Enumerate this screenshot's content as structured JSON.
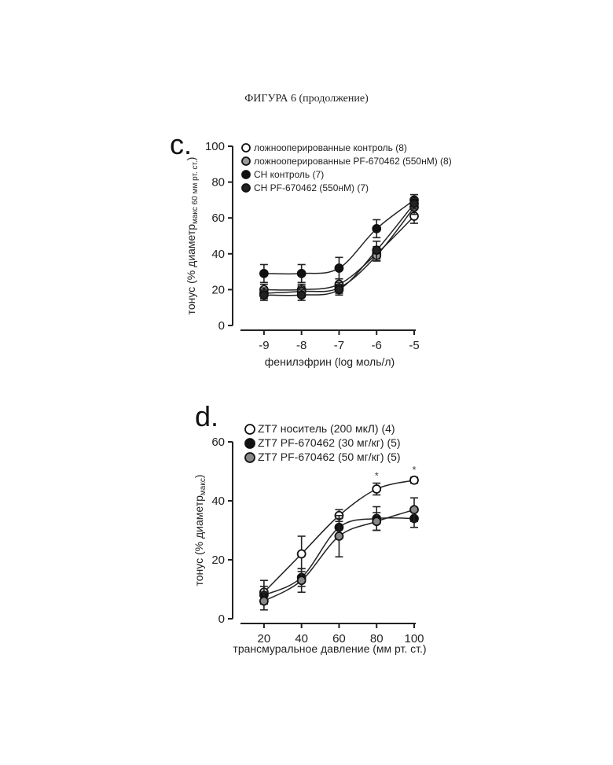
{
  "caption": "ФИГУРА 6 (продолжение)",
  "chart_data": [
    {
      "panel": "c.",
      "type": "line",
      "xlabel": "фенилэфрин (log моль/л)",
      "ylabel_main": "тонус (% диаметр",
      "ylabel_sub": "макс 60 мм рт. ст.",
      "ylabel_end": ")",
      "xlim": [
        -9.5,
        -5
      ],
      "ylim": [
        0,
        100
      ],
      "xticks": [
        "-9",
        "-8",
        "-7",
        "-6",
        "-5"
      ],
      "yticks": [
        "0",
        "20",
        "40",
        "60",
        "80",
        "100"
      ],
      "x": [
        -9,
        -8,
        -7,
        -6,
        -5
      ],
      "legend_position": "top-left",
      "series": [
        {
          "name": "ложнооперированные контроль (8)",
          "color": "#ffffff",
          "values": [
            20,
            20,
            23,
            40,
            61
          ],
          "errors": [
            3,
            3,
            3,
            4,
            4
          ]
        },
        {
          "name": "ложнооперированные PF-670462 (550нМ) (8)",
          "color": "#999999",
          "values": [
            18,
            19,
            21,
            39,
            66
          ],
          "errors": [
            3,
            3,
            3,
            3,
            4
          ]
        },
        {
          "name": "CH контроль (7)",
          "color": "#111111",
          "values": [
            29,
            29,
            32,
            54,
            70
          ],
          "errors": [
            5,
            5,
            6,
            5,
            3
          ]
        },
        {
          "name": "CH PF-670462 (550нМ) (7)",
          "color": "#222222",
          "values": [
            17,
            17,
            20,
            42,
            68
          ],
          "errors": [
            3,
            3,
            3,
            5,
            3
          ]
        }
      ]
    },
    {
      "panel": "d.",
      "type": "line",
      "xlabel": "трансмуральное давление (мм рт. ст.)",
      "ylabel_main": "тонус (% диаметр",
      "ylabel_sub": "макс",
      "ylabel_end": ")",
      "xlim": [
        10,
        100
      ],
      "ylim": [
        0,
        60
      ],
      "xticks": [
        "20",
        "40",
        "60",
        "80",
        "100"
      ],
      "yticks": [
        "0",
        "20",
        "40",
        "60"
      ],
      "x": [
        20,
        40,
        60,
        80,
        100
      ],
      "legend_position": "top-left",
      "annotations": [
        "*",
        "*"
      ],
      "series": [
        {
          "name": "ZT7 носитель (200 мкЛ) (4)",
          "color": "#ffffff",
          "values": [
            9,
            22,
            35,
            44,
            47
          ],
          "errors": [
            4,
            6,
            2,
            2,
            1
          ]
        },
        {
          "name": "ZT7 PF-670462 (30 мг/кг) (5)",
          "color": "#111111",
          "values": [
            8,
            14,
            31,
            34,
            34
          ],
          "errors": [
            3,
            3,
            3,
            4,
            3
          ]
        },
        {
          "name": "ZT7 PF-670462 (50 мг/кг) (5)",
          "color": "#888888",
          "values": [
            6,
            13,
            28,
            33,
            37
          ],
          "errors": [
            3,
            4,
            7,
            3,
            4
          ]
        }
      ]
    }
  ]
}
